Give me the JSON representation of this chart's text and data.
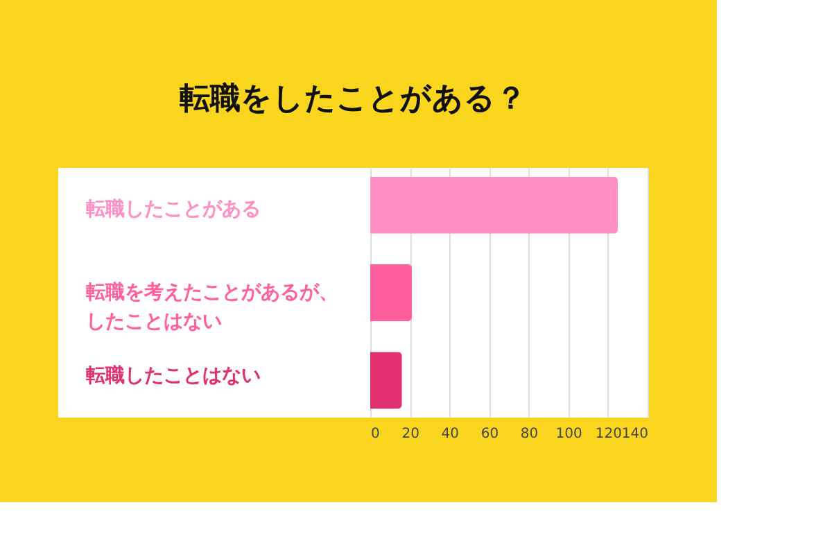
{
  "chart_data": {
    "type": "bar",
    "orientation": "horizontal",
    "title": "転職をしたことがある？",
    "categories": [
      "転職したことがある",
      "転職を考えたことがあるが、したことはない",
      "転職したことはない"
    ],
    "values": [
      125,
      21,
      16
    ],
    "colors": [
      "#ff8fc3",
      "#ff5f9c",
      "#e0306f"
    ],
    "xlim": [
      0,
      140
    ],
    "xticks": [
      0,
      20,
      40,
      60,
      80,
      100,
      120,
      140
    ],
    "grid": "x"
  }
}
